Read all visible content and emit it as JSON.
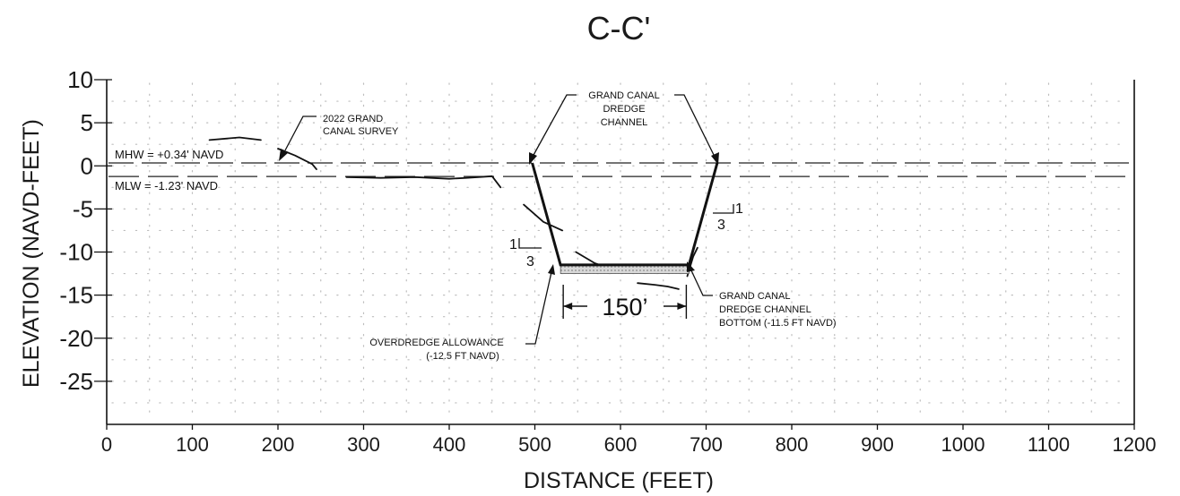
{
  "title": "C-C'",
  "chart_data": {
    "type": "line",
    "xlabel": "DISTANCE (FEET)",
    "ylabel": "ELEVATION (NAVD-FEET)",
    "xlim": [
      0,
      1200
    ],
    "ylim": [
      -30,
      10
    ],
    "xticks": [
      0,
      100,
      200,
      300,
      400,
      500,
      600,
      700,
      800,
      900,
      1000,
      1100,
      1200
    ],
    "yticks": [
      10,
      5,
      0,
      -5,
      -10,
      -15,
      -20,
      -25
    ],
    "xtick_labels": [
      "0",
      "100",
      "200",
      "300",
      "400",
      "500",
      "600",
      "700",
      "800",
      "900",
      "1000",
      "1100",
      "1200"
    ],
    "ytick_labels": [
      "10",
      "5",
      "0",
      "-5",
      "-10",
      "-15",
      "-20",
      "-25"
    ],
    "grid": "dotted",
    "water_levels": [
      {
        "label": "MHW = +0.34' NAVD",
        "elevation": 0.34
      },
      {
        "label": "MLW = -1.23' NAVD",
        "elevation": -1.23
      }
    ],
    "survey_segments": [
      [
        [
          120,
          3.0
        ],
        [
          155,
          3.3
        ],
        [
          180,
          3.0
        ]
      ],
      [
        [
          200,
          2.0
        ],
        [
          220,
          1.2
        ],
        [
          240,
          0.2
        ],
        [
          245,
          -0.4
        ]
      ],
      [
        [
          280,
          -1.3
        ],
        [
          320,
          -1.4
        ],
        [
          360,
          -1.3
        ],
        [
          400,
          -1.5
        ],
        [
          420,
          -1.4
        ],
        [
          450,
          -1.2
        ],
        [
          460,
          -2.5
        ]
      ],
      [
        [
          487,
          -4.5
        ],
        [
          510,
          -6.5
        ],
        [
          532,
          -7.5
        ]
      ],
      [
        [
          548,
          -10.0
        ],
        [
          570,
          -11.3
        ],
        [
          590,
          -12.0
        ]
      ],
      [
        [
          620,
          -13.6
        ],
        [
          640,
          -13.8
        ],
        [
          655,
          -14.0
        ],
        [
          668,
          -14.3
        ]
      ],
      [
        [
          678,
          -12.8
        ],
        [
          685,
          -10.5
        ],
        [
          690,
          -9.5
        ]
      ]
    ],
    "channel": {
      "top_left": [
        497,
        0.34
      ],
      "bottom_left": [
        530,
        -11.5
      ],
      "bottom_right": [
        680,
        -11.5
      ],
      "top_right": [
        713,
        0.34
      ],
      "bottom_elevation": -11.5,
      "overdredge_elevation": -12.5,
      "bottom_width_label": "150’",
      "bottom_width": 150
    },
    "slopes": [
      {
        "rise": "1",
        "run": "3"
      },
      {
        "rise": "1",
        "run": "3"
      }
    ],
    "annotations": {
      "survey": [
        "2022 GRAND",
        "CANAL SURVEY"
      ],
      "channel": [
        "GRAND CANAL",
        "DREDGE",
        "CHANNEL"
      ],
      "bottom": [
        "GRAND CANAL",
        "DREDGE CHANNEL",
        "BOTTOM (-11.5 FT NAVD)"
      ],
      "overdredge": [
        "OVERDREDGE ALLOWANCE",
        "(-12.5 FT NAVD)"
      ]
    }
  }
}
